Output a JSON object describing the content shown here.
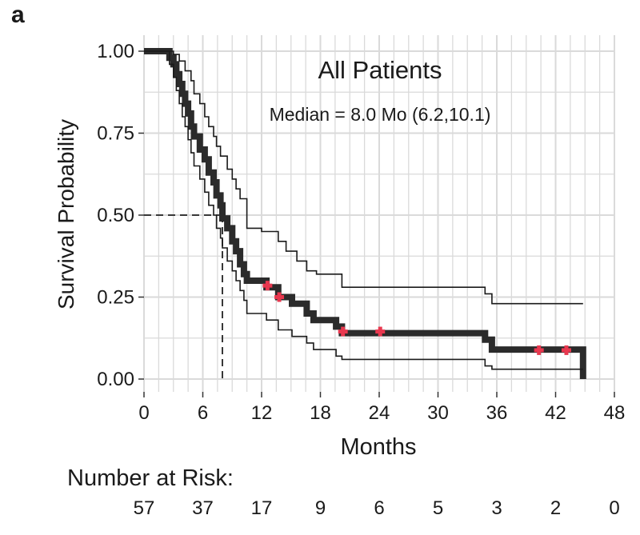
{
  "panel_label": "a",
  "risk_table": {
    "title": "Number at Risk:",
    "times": [
      0,
      6,
      12,
      18,
      24,
      30,
      36,
      42,
      48
    ],
    "counts": [
      "57",
      "37",
      "17",
      "9",
      "6",
      "5",
      "3",
      "2",
      "0"
    ]
  },
  "colors": {
    "curve": "#2b2b2b",
    "ci": "#1a1a1a",
    "censor": "#e8384f",
    "grid": "#dadada",
    "panel_bg": "#ffffff"
  },
  "chart_data": {
    "type": "line",
    "title": "All Patients",
    "subtitle": "Median = 8.0 Mo (6.2,10.1)",
    "xlabel": "Months",
    "ylabel": "Survival Probability",
    "xlim": [
      0,
      48
    ],
    "ylim": [
      0,
      1
    ],
    "x_ticks": [
      0,
      6,
      12,
      18,
      24,
      30,
      36,
      42,
      48
    ],
    "x_tick_labels": [
      "0",
      "6",
      "12",
      "18",
      "24",
      "30",
      "36",
      "42",
      "48"
    ],
    "y_ticks": [
      0,
      0.25,
      0.5,
      0.75,
      1
    ],
    "y_tick_labels": [
      "0.00",
      "0.25",
      "0.50",
      "0.75",
      "1.00"
    ],
    "grid": true,
    "median": {
      "x": 8.0,
      "y": 0.5
    },
    "series": [
      {
        "name": "survival",
        "points": [
          [
            0,
            1
          ],
          [
            2.6,
            1
          ],
          [
            2.6,
            0.98
          ],
          [
            3.0,
            0.98
          ],
          [
            3.0,
            0.96
          ],
          [
            3.3,
            0.96
          ],
          [
            3.3,
            0.93
          ],
          [
            3.6,
            0.93
          ],
          [
            3.6,
            0.9
          ],
          [
            3.9,
            0.9
          ],
          [
            3.9,
            0.87
          ],
          [
            4.2,
            0.87
          ],
          [
            4.2,
            0.84
          ],
          [
            4.5,
            0.84
          ],
          [
            4.5,
            0.81
          ],
          [
            4.8,
            0.81
          ],
          [
            4.8,
            0.77
          ],
          [
            5.1,
            0.77
          ],
          [
            5.1,
            0.74
          ],
          [
            5.7,
            0.74
          ],
          [
            5.7,
            0.7
          ],
          [
            6.2,
            0.7
          ],
          [
            6.2,
            0.67
          ],
          [
            6.6,
            0.67
          ],
          [
            6.6,
            0.63
          ],
          [
            7.1,
            0.63
          ],
          [
            7.1,
            0.6
          ],
          [
            7.4,
            0.6
          ],
          [
            7.4,
            0.56
          ],
          [
            7.8,
            0.56
          ],
          [
            7.8,
            0.53
          ],
          [
            8.0,
            0.53
          ],
          [
            8.0,
            0.49
          ],
          [
            8.5,
            0.49
          ],
          [
            8.5,
            0.46
          ],
          [
            9.0,
            0.46
          ],
          [
            9.0,
            0.42
          ],
          [
            9.4,
            0.42
          ],
          [
            9.4,
            0.39
          ],
          [
            9.8,
            0.39
          ],
          [
            9.8,
            0.35
          ],
          [
            10.2,
            0.35
          ],
          [
            10.2,
            0.32
          ],
          [
            10.5,
            0.32
          ],
          [
            10.5,
            0.3
          ],
          [
            12.5,
            0.3
          ],
          [
            12.5,
            0.28
          ],
          [
            13.7,
            0.28
          ],
          [
            13.7,
            0.25
          ],
          [
            15.1,
            0.25
          ],
          [
            15.1,
            0.23
          ],
          [
            16.6,
            0.23
          ],
          [
            16.6,
            0.2
          ],
          [
            17.3,
            0.2
          ],
          [
            17.3,
            0.18
          ],
          [
            19.6,
            0.18
          ],
          [
            19.6,
            0.16
          ],
          [
            20.2,
            0.16
          ],
          [
            20.2,
            0.14
          ],
          [
            34.8,
            0.14
          ],
          [
            34.8,
            0.12
          ],
          [
            35.5,
            0.12
          ],
          [
            35.5,
            0.09
          ],
          [
            44.8,
            0.09
          ],
          [
            44.8,
            0
          ]
        ]
      },
      {
        "name": "upper_ci",
        "points": [
          [
            0,
            1
          ],
          [
            3.0,
            1
          ],
          [
            3.0,
            0.99
          ],
          [
            3.6,
            0.99
          ],
          [
            3.6,
            0.97
          ],
          [
            4.2,
            0.97
          ],
          [
            4.2,
            0.94
          ],
          [
            4.8,
            0.94
          ],
          [
            4.8,
            0.91
          ],
          [
            5.1,
            0.91
          ],
          [
            5.1,
            0.87
          ],
          [
            5.7,
            0.87
          ],
          [
            5.7,
            0.84
          ],
          [
            6.2,
            0.84
          ],
          [
            6.2,
            0.8
          ],
          [
            6.6,
            0.8
          ],
          [
            6.6,
            0.77
          ],
          [
            7.1,
            0.77
          ],
          [
            7.1,
            0.74
          ],
          [
            7.4,
            0.74
          ],
          [
            7.4,
            0.71
          ],
          [
            7.8,
            0.71
          ],
          [
            7.8,
            0.68
          ],
          [
            8.5,
            0.68
          ],
          [
            8.5,
            0.64
          ],
          [
            9.0,
            0.64
          ],
          [
            9.0,
            0.61
          ],
          [
            9.4,
            0.61
          ],
          [
            9.4,
            0.58
          ],
          [
            9.8,
            0.58
          ],
          [
            9.8,
            0.55
          ],
          [
            10.5,
            0.55
          ],
          [
            10.5,
            0.46
          ],
          [
            12.0,
            0.46
          ],
          [
            12.0,
            0.45
          ],
          [
            13.7,
            0.45
          ],
          [
            13.7,
            0.42
          ],
          [
            14.5,
            0.42
          ],
          [
            14.5,
            0.39
          ],
          [
            15.6,
            0.39
          ],
          [
            15.6,
            0.36
          ],
          [
            16.6,
            0.36
          ],
          [
            16.6,
            0.33
          ],
          [
            17.6,
            0.33
          ],
          [
            17.6,
            0.32
          ],
          [
            20.2,
            0.32
          ],
          [
            20.2,
            0.28
          ],
          [
            34.8,
            0.28
          ],
          [
            34.8,
            0.26
          ],
          [
            35.5,
            0.26
          ],
          [
            35.5,
            0.23
          ],
          [
            44.8,
            0.23
          ]
        ]
      },
      {
        "name": "lower_ci",
        "points": [
          [
            0,
            1
          ],
          [
            2.6,
            1
          ],
          [
            2.6,
            0.96
          ],
          [
            3.0,
            0.96
          ],
          [
            3.0,
            0.92
          ],
          [
            3.3,
            0.92
          ],
          [
            3.3,
            0.88
          ],
          [
            3.6,
            0.88
          ],
          [
            3.6,
            0.84
          ],
          [
            3.9,
            0.84
          ],
          [
            3.9,
            0.8
          ],
          [
            4.2,
            0.8
          ],
          [
            4.2,
            0.77
          ],
          [
            4.5,
            0.77
          ],
          [
            4.5,
            0.73
          ],
          [
            4.8,
            0.73
          ],
          [
            4.8,
            0.69
          ],
          [
            5.1,
            0.69
          ],
          [
            5.1,
            0.65
          ],
          [
            5.7,
            0.65
          ],
          [
            5.7,
            0.61
          ],
          [
            6.2,
            0.61
          ],
          [
            6.2,
            0.57
          ],
          [
            6.6,
            0.57
          ],
          [
            6.6,
            0.53
          ],
          [
            7.1,
            0.53
          ],
          [
            7.1,
            0.5
          ],
          [
            7.4,
            0.5
          ],
          [
            7.4,
            0.46
          ],
          [
            7.8,
            0.46
          ],
          [
            7.8,
            0.43
          ],
          [
            8.0,
            0.43
          ],
          [
            8.0,
            0.4
          ],
          [
            8.5,
            0.4
          ],
          [
            8.5,
            0.36
          ],
          [
            9.0,
            0.36
          ],
          [
            9.0,
            0.33
          ],
          [
            9.4,
            0.33
          ],
          [
            9.4,
            0.3
          ],
          [
            9.8,
            0.3
          ],
          [
            9.8,
            0.27
          ],
          [
            10.2,
            0.27
          ],
          [
            10.2,
            0.24
          ],
          [
            10.5,
            0.24
          ],
          [
            10.5,
            0.2
          ],
          [
            12.5,
            0.2
          ],
          [
            12.5,
            0.18
          ],
          [
            13.7,
            0.18
          ],
          [
            13.7,
            0.15
          ],
          [
            15.1,
            0.15
          ],
          [
            15.1,
            0.13
          ],
          [
            16.6,
            0.13
          ],
          [
            16.6,
            0.11
          ],
          [
            17.3,
            0.11
          ],
          [
            17.3,
            0.09
          ],
          [
            19.6,
            0.09
          ],
          [
            19.6,
            0.07
          ],
          [
            20.2,
            0.07
          ],
          [
            20.2,
            0.06
          ],
          [
            34.8,
            0.06
          ],
          [
            34.8,
            0.04
          ],
          [
            35.5,
            0.04
          ],
          [
            35.5,
            0.03
          ],
          [
            44.8,
            0.03
          ]
        ]
      }
    ],
    "censored": [
      {
        "x": 12.6,
        "y": 0.285
      },
      {
        "x": 13.8,
        "y": 0.25
      },
      {
        "x": 20.3,
        "y": 0.145
      },
      {
        "x": 24.1,
        "y": 0.145
      },
      {
        "x": 40.3,
        "y": 0.088
      },
      {
        "x": 43.1,
        "y": 0.088
      }
    ]
  }
}
